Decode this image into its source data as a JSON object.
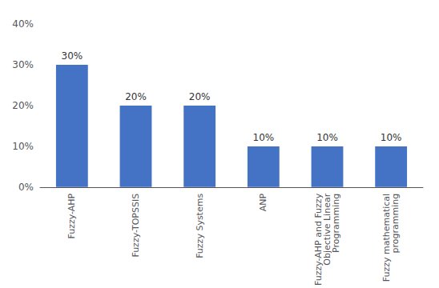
{
  "chart_data": {
    "type": "bar",
    "categories": [
      "Fuzzy-AHP",
      "Fuzzy-TOPSSIS",
      "Fuzzy Systems",
      "ANP",
      "Fuzzy-AHP and Fuzzy\nObjective Linear\nProgramming",
      "Fuzzy mathematical\nprogramming"
    ],
    "values": [
      30,
      20,
      20,
      10,
      10,
      10
    ],
    "value_labels": [
      "30%",
      "20%",
      "20%",
      "10%",
      "10%",
      "10%"
    ],
    "data_labels": true,
    "color": "#4472C4",
    "ylim": [
      0,
      40
    ],
    "yticks": [
      {
        "value": 0,
        "label": "0%"
      },
      {
        "value": 10,
        "label": "10%"
      },
      {
        "value": 20,
        "label": "20%"
      },
      {
        "value": 30,
        "label": "30%"
      },
      {
        "value": 40,
        "label": "40%"
      }
    ],
    "grid": false
  }
}
